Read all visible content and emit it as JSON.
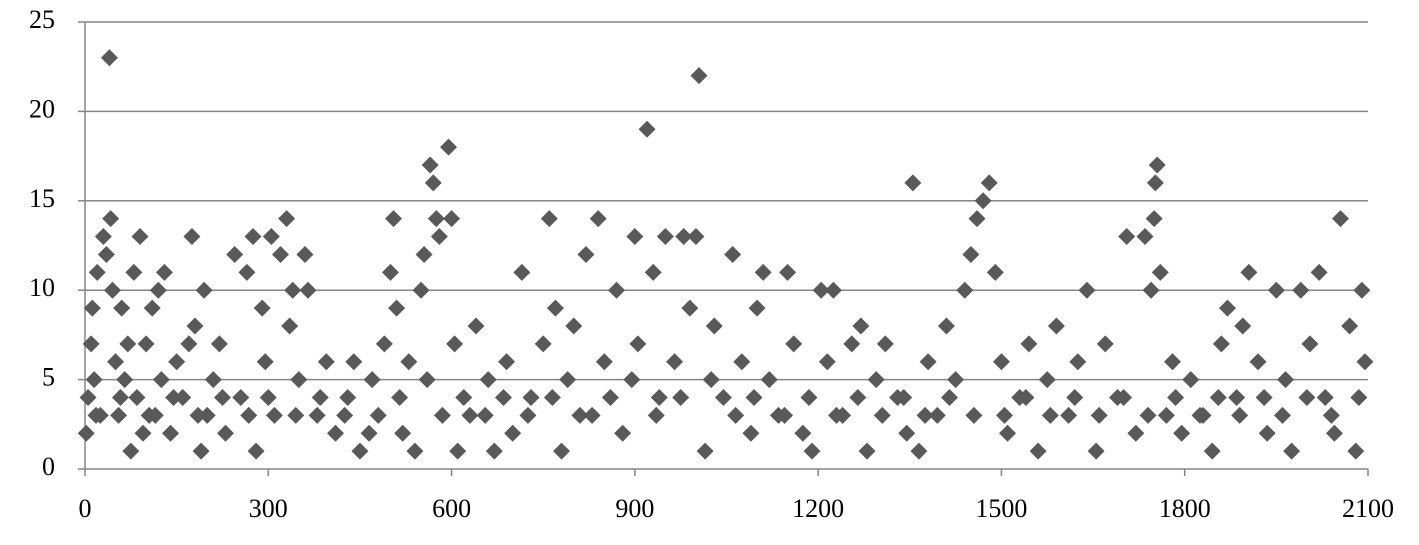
{
  "chart_data": {
    "type": "scatter",
    "x": [
      2,
      5,
      10,
      12,
      15,
      20,
      25,
      30,
      35,
      40,
      42,
      45,
      50,
      55,
      60,
      65,
      70,
      75,
      80,
      85,
      90,
      95,
      100,
      110,
      115,
      120,
      125,
      130,
      140,
      150,
      160,
      170,
      175,
      180,
      190,
      195,
      200,
      210,
      220,
      230,
      245,
      255,
      265,
      275,
      280,
      290,
      295,
      305,
      310,
      320,
      330,
      335,
      340,
      350,
      360,
      365,
      380,
      395,
      410,
      430,
      440,
      450,
      470,
      480,
      490,
      500,
      505,
      510,
      520,
      530,
      540,
      550,
      555,
      565,
      570,
      575,
      580,
      585,
      595,
      600,
      605,
      610,
      630,
      640,
      660,
      670,
      690,
      700,
      715,
      730,
      750,
      760,
      770,
      780,
      790,
      800,
      820,
      830,
      840,
      850,
      870,
      880,
      900,
      905,
      920,
      930,
      940,
      950,
      965,
      980,
      990,
      1000,
      1005,
      1015,
      1030,
      1045,
      1060,
      1075,
      1090,
      1100,
      1110,
      1120,
      1135,
      1150,
      1160,
      1175,
      1190,
      1205,
      1215,
      1225,
      1240,
      1255,
      1270,
      1280,
      1295,
      1310,
      1330,
      1345,
      1355,
      1365,
      1380,
      1395,
      1410,
      1425,
      1440,
      1450,
      1460,
      1470,
      1480,
      1490,
      1500,
      1510,
      1530,
      1545,
      1560,
      1575,
      1590,
      1610,
      1625,
      1640,
      1655,
      1670,
      1690,
      1705,
      1720,
      1735,
      1745,
      1755,
      1752,
      1750,
      1760,
      1770,
      1780,
      1795,
      1810,
      1830,
      1845,
      1860,
      1870,
      1885,
      1895,
      1905,
      1920,
      1935,
      1950,
      1965,
      1975,
      1990,
      2005,
      2020,
      2030,
      2045,
      2055,
      2070,
      2080,
      2090,
      2095,
      18,
      58,
      105,
      145,
      185,
      225,
      268,
      300,
      345,
      385,
      425,
      465,
      515,
      560,
      620,
      655,
      685,
      725,
      765,
      810,
      860,
      895,
      935,
      975,
      1025,
      1065,
      1095,
      1145,
      1185,
      1230,
      1265,
      1305,
      1340,
      1375,
      1415,
      1455,
      1505,
      1540,
      1580,
      1620,
      1660,
      1700,
      1740,
      1785,
      1825,
      1855,
      1890,
      1930,
      1960,
      2000,
      2040,
      2085
    ],
    "series": [
      {
        "color": "#595959",
        "values": [
          2,
          4,
          7,
          9,
          5,
          11,
          3,
          13,
          12,
          23,
          14,
          10,
          6,
          3,
          9,
          5,
          7,
          1,
          11,
          4,
          13,
          2,
          7,
          9,
          3,
          10,
          5,
          11,
          2,
          6,
          4,
          7,
          13,
          8,
          1,
          10,
          3,
          5,
          7,
          2,
          12,
          4,
          11,
          13,
          1,
          9,
          6,
          13,
          3,
          12,
          14,
          8,
          10,
          5,
          12,
          10,
          3,
          6,
          2,
          4,
          6,
          1,
          5,
          3,
          7,
          11,
          14,
          9,
          2,
          6,
          1,
          10,
          12,
          17,
          16,
          14,
          13,
          3,
          18,
          14,
          7,
          1,
          3,
          8,
          5,
          1,
          6,
          2,
          11,
          4,
          7,
          14,
          9,
          1,
          5,
          8,
          12,
          3,
          14,
          6,
          10,
          2,
          13,
          7,
          19,
          11,
          4,
          13,
          6,
          13,
          9,
          13,
          22,
          1,
          8,
          4,
          12,
          6,
          2,
          9,
          11,
          5,
          3,
          11,
          7,
          2,
          1,
          10,
          6,
          10,
          3,
          7,
          8,
          1,
          5,
          7,
          4,
          2,
          16,
          1,
          6,
          3,
          8,
          5,
          10,
          12,
          14,
          15,
          16,
          11,
          6,
          2,
          4,
          7,
          1,
          5,
          8,
          3,
          6,
          10,
          1,
          7,
          4,
          13,
          2,
          13,
          10,
          17,
          16,
          14,
          11,
          3,
          6,
          2,
          5,
          3,
          1,
          7,
          9,
          4,
          8,
          11,
          6,
          2,
          10,
          5,
          1,
          10,
          7,
          11,
          4,
          2,
          14,
          8,
          1,
          10,
          6,
          3,
          4,
          3,
          4,
          3,
          4,
          3,
          4,
          3,
          4,
          3,
          2,
          4,
          5,
          4,
          3,
          4,
          3,
          4,
          3,
          4,
          5,
          3,
          4,
          5,
          3,
          4,
          3,
          4,
          3,
          4,
          3,
          4,
          3,
          4,
          3,
          3,
          4,
          3,
          4,
          3,
          4,
          3,
          4,
          3,
          4,
          3,
          4,
          3,
          4,
          3,
          4
        ]
      }
    ],
    "xlim": [
      0,
      2100
    ],
    "xticks": [
      0,
      300,
      600,
      900,
      1200,
      1500,
      1800,
      2100
    ],
    "ylim": [
      0,
      25
    ],
    "yticks": [
      0,
      5,
      10,
      15,
      20,
      25
    ],
    "grid": true
  }
}
